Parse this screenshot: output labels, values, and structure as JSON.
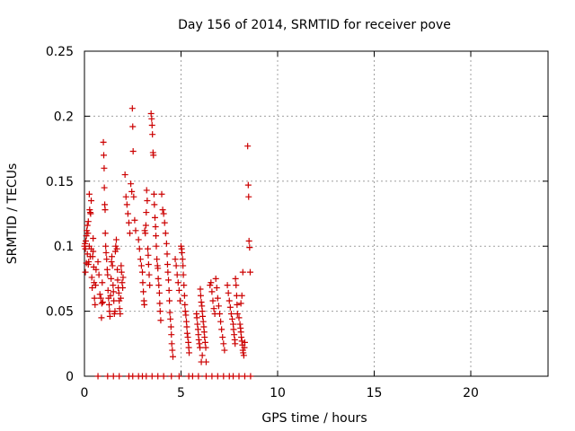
{
  "chart_data": {
    "type": "scatter",
    "title": "Day 156 of 2014, SRMTID for receiver pove",
    "xlabel": "GPS time / hours",
    "ylabel": "SRMTID / TECUs",
    "xlim": [
      0,
      24
    ],
    "ylim": [
      0,
      0.25
    ],
    "xticks": [
      0,
      5,
      10,
      15,
      20
    ],
    "xtick_labels": [
      "0",
      "5",
      "10",
      "15",
      "20"
    ],
    "yticks": [
      0,
      0.05,
      0.1,
      0.15,
      0.2,
      0.25
    ],
    "ytick_labels": [
      "0",
      "0.05",
      "0.1",
      "0.15",
      "0.2",
      "0.25"
    ],
    "grid": true,
    "marker": "plus",
    "color": "#cc0000",
    "series": [
      {
        "points": [
          [
            0.0,
            0.1
          ],
          [
            0.03,
            0.102
          ],
          [
            0.05,
            0.098
          ],
          [
            0.07,
            0.104
          ],
          [
            0.1,
            0.108
          ],
          [
            0.12,
            0.112
          ],
          [
            0.15,
            0.116
          ],
          [
            0.18,
            0.11
          ],
          [
            0.2,
            0.119
          ],
          [
            0.22,
            0.088
          ],
          [
            0.25,
            0.14
          ],
          [
            0.27,
            0.128
          ],
          [
            0.3,
            0.126
          ],
          [
            0.32,
            0.125
          ],
          [
            0.35,
            0.135
          ],
          [
            0.38,
            0.076
          ],
          [
            0.4,
            0.068
          ],
          [
            0.42,
            0.092
          ],
          [
            0.45,
            0.096
          ],
          [
            0.48,
            0.084
          ],
          [
            0.5,
            0.072
          ],
          [
            0.52,
            0.06
          ],
          [
            0.55,
            0.055
          ],
          [
            0.58,
            0.07
          ],
          [
            0.6,
            0.082
          ],
          [
            0.05,
            0.08
          ],
          [
            0.1,
            0.087
          ],
          [
            0.15,
            0.094
          ],
          [
            0.2,
            0.086
          ],
          [
            0.25,
            0.1
          ],
          [
            0.3,
            0.092
          ],
          [
            0.35,
            0.098
          ],
          [
            0.45,
            0.106
          ],
          [
            0.7,
            0.088
          ],
          [
            0.75,
            0.078
          ],
          [
            0.8,
            0.063
          ],
          [
            0.85,
            0.06
          ],
          [
            0.88,
            0.045
          ],
          [
            0.9,
            0.056
          ],
          [
            0.92,
            0.072
          ],
          [
            0.95,
            0.057
          ],
          [
            0.98,
            0.18
          ],
          [
            1.0,
            0.17
          ],
          [
            1.02,
            0.16
          ],
          [
            1.03,
            0.145
          ],
          [
            1.05,
            0.132
          ],
          [
            1.07,
            0.128
          ],
          [
            1.08,
            0.11
          ],
          [
            1.1,
            0.1
          ],
          [
            1.12,
            0.095
          ],
          [
            1.15,
            0.09
          ],
          [
            1.18,
            0.082
          ],
          [
            1.2,
            0.078
          ],
          [
            1.22,
            0.066
          ],
          [
            1.25,
            0.06
          ],
          [
            1.28,
            0.055
          ],
          [
            1.3,
            0.05
          ],
          [
            1.32,
            0.046
          ],
          [
            1.35,
            0.062
          ],
          [
            1.38,
            0.075
          ],
          [
            1.4,
            0.088
          ],
          [
            1.42,
            0.092
          ],
          [
            1.45,
            0.085
          ],
          [
            1.48,
            0.07
          ],
          [
            1.5,
            0.065
          ],
          [
            1.52,
            0.058
          ],
          [
            1.55,
            0.048
          ],
          [
            1.58,
            0.05
          ],
          [
            1.6,
            0.096
          ],
          [
            1.62,
            0.1
          ],
          [
            1.65,
            0.105
          ],
          [
            1.68,
            0.098
          ],
          [
            1.7,
            0.082
          ],
          [
            1.72,
            0.074
          ],
          [
            1.75,
            0.068
          ],
          [
            1.78,
            0.064
          ],
          [
            1.8,
            0.058
          ],
          [
            1.82,
            0.052
          ],
          [
            1.85,
            0.048
          ],
          [
            1.88,
            0.06
          ],
          [
            1.9,
            0.085
          ],
          [
            1.92,
            0.08
          ],
          [
            1.95,
            0.072
          ],
          [
            1.98,
            0.068
          ],
          [
            2.0,
            0.076
          ],
          [
            2.1,
            0.155
          ],
          [
            2.15,
            0.138
          ],
          [
            2.2,
            0.132
          ],
          [
            2.25,
            0.125
          ],
          [
            2.3,
            0.118
          ],
          [
            2.35,
            0.11
          ],
          [
            2.4,
            0.148
          ],
          [
            2.45,
            0.142
          ],
          [
            2.48,
            0.206
          ],
          [
            2.5,
            0.192
          ],
          [
            2.52,
            0.173
          ],
          [
            2.55,
            0.138
          ],
          [
            2.6,
            0.12
          ],
          [
            2.65,
            0.112
          ],
          [
            2.8,
            0.105
          ],
          [
            2.85,
            0.098
          ],
          [
            2.9,
            0.09
          ],
          [
            2.95,
            0.085
          ],
          [
            3.0,
            0.08
          ],
          [
            3.02,
            0.072
          ],
          [
            3.05,
            0.065
          ],
          [
            3.08,
            0.058
          ],
          [
            3.1,
            0.055
          ],
          [
            3.12,
            0.112
          ],
          [
            3.15,
            0.11
          ],
          [
            3.18,
            0.116
          ],
          [
            3.2,
            0.126
          ],
          [
            3.22,
            0.143
          ],
          [
            3.25,
            0.135
          ],
          [
            3.28,
            0.098
          ],
          [
            3.3,
            0.093
          ],
          [
            3.32,
            0.086
          ],
          [
            3.35,
            0.078
          ],
          [
            3.38,
            0.07
          ],
          [
            3.45,
            0.202
          ],
          [
            3.48,
            0.198
          ],
          [
            3.5,
            0.193
          ],
          [
            3.52,
            0.186
          ],
          [
            3.55,
            0.172
          ],
          [
            3.57,
            0.17
          ],
          [
            3.6,
            0.14
          ],
          [
            3.62,
            0.132
          ],
          [
            3.65,
            0.122
          ],
          [
            3.68,
            0.115
          ],
          [
            3.7,
            0.108
          ],
          [
            3.72,
            0.1
          ],
          [
            3.75,
            0.09
          ],
          [
            3.78,
            0.085
          ],
          [
            3.8,
            0.083
          ],
          [
            3.82,
            0.075
          ],
          [
            3.85,
            0.07
          ],
          [
            3.88,
            0.064
          ],
          [
            3.9,
            0.056
          ],
          [
            3.92,
            0.05
          ],
          [
            3.95,
            0.043
          ],
          [
            4.0,
            0.14
          ],
          [
            4.05,
            0.128
          ],
          [
            4.1,
            0.125
          ],
          [
            4.15,
            0.118
          ],
          [
            4.2,
            0.11
          ],
          [
            4.25,
            0.102
          ],
          [
            4.28,
            0.094
          ],
          [
            4.3,
            0.086
          ],
          [
            4.32,
            0.08
          ],
          [
            4.35,
            0.074
          ],
          [
            4.38,
            0.066
          ],
          [
            4.4,
            0.058
          ],
          [
            4.42,
            0.049
          ],
          [
            4.45,
            0.044
          ],
          [
            4.48,
            0.038
          ],
          [
            4.5,
            0.032
          ],
          [
            4.52,
            0.025
          ],
          [
            4.55,
            0.02
          ],
          [
            4.58,
            0.015
          ],
          [
            4.7,
            0.09
          ],
          [
            4.75,
            0.085
          ],
          [
            4.8,
            0.078
          ],
          [
            4.85,
            0.072
          ],
          [
            4.9,
            0.066
          ],
          [
            4.95,
            0.058
          ],
          [
            5.0,
            0.1
          ],
          [
            5.03,
            0.098
          ],
          [
            5.05,
            0.095
          ],
          [
            5.08,
            0.09
          ],
          [
            5.1,
            0.085
          ],
          [
            5.12,
            0.078
          ],
          [
            5.15,
            0.07
          ],
          [
            5.18,
            0.062
          ],
          [
            5.2,
            0.055
          ],
          [
            5.22,
            0.05
          ],
          [
            5.25,
            0.047
          ],
          [
            5.28,
            0.042
          ],
          [
            5.3,
            0.038
          ],
          [
            5.32,
            0.033
          ],
          [
            5.35,
            0.03
          ],
          [
            5.38,
            0.026
          ],
          [
            5.4,
            0.022
          ],
          [
            5.42,
            0.018
          ],
          [
            5.8,
            0.048
          ],
          [
            5.82,
            0.045
          ],
          [
            5.85,
            0.04
          ],
          [
            5.88,
            0.036
          ],
          [
            5.9,
            0.032
          ],
          [
            5.92,
            0.028
          ],
          [
            5.95,
            0.025
          ],
          [
            5.98,
            0.022
          ],
          [
            6.0,
            0.067
          ],
          [
            6.02,
            0.062
          ],
          [
            6.05,
            0.057
          ],
          [
            6.08,
            0.054
          ],
          [
            6.1,
            0.05
          ],
          [
            6.12,
            0.046
          ],
          [
            6.15,
            0.042
          ],
          [
            6.18,
            0.038
          ],
          [
            6.2,
            0.034
          ],
          [
            6.22,
            0.03
          ],
          [
            6.25,
            0.026
          ],
          [
            6.28,
            0.022
          ],
          [
            6.3,
            0.011
          ],
          [
            6.05,
            0.011
          ],
          [
            6.1,
            0.016
          ],
          [
            6.5,
            0.07
          ],
          [
            6.55,
            0.072
          ],
          [
            6.6,
            0.065
          ],
          [
            6.65,
            0.058
          ],
          [
            6.7,
            0.052
          ],
          [
            6.75,
            0.048
          ],
          [
            6.8,
            0.075
          ],
          [
            6.85,
            0.068
          ],
          [
            6.9,
            0.06
          ],
          [
            6.95,
            0.054
          ],
          [
            7.0,
            0.048
          ],
          [
            7.05,
            0.042
          ],
          [
            7.1,
            0.036
          ],
          [
            7.15,
            0.03
          ],
          [
            7.2,
            0.025
          ],
          [
            7.25,
            0.02
          ],
          [
            7.4,
            0.07
          ],
          [
            7.45,
            0.064
          ],
          [
            7.5,
            0.058
          ],
          [
            7.55,
            0.053
          ],
          [
            7.6,
            0.048
          ],
          [
            7.65,
            0.044
          ],
          [
            7.7,
            0.04
          ],
          [
            7.72,
            0.036
          ],
          [
            7.75,
            0.032
          ],
          [
            7.78,
            0.028
          ],
          [
            7.8,
            0.025
          ],
          [
            7.82,
            0.075
          ],
          [
            7.85,
            0.07
          ],
          [
            7.88,
            0.062
          ],
          [
            7.9,
            0.055
          ],
          [
            7.92,
            0.048
          ],
          [
            8.0,
            0.045
          ],
          [
            8.05,
            0.04
          ],
          [
            8.08,
            0.037
          ],
          [
            8.1,
            0.034
          ],
          [
            8.12,
            0.03
          ],
          [
            8.15,
            0.027
          ],
          [
            8.18,
            0.024
          ],
          [
            8.2,
            0.02
          ],
          [
            8.22,
            0.018
          ],
          [
            8.25,
            0.016
          ],
          [
            8.28,
            0.022
          ],
          [
            8.3,
            0.026
          ],
          [
            8.15,
            0.062
          ],
          [
            8.2,
            0.08
          ],
          [
            8.1,
            0.056
          ],
          [
            8.45,
            0.177
          ],
          [
            8.48,
            0.147
          ],
          [
            8.5,
            0.138
          ],
          [
            8.52,
            0.104
          ],
          [
            8.55,
            0.099
          ],
          [
            8.58,
            0.08
          ],
          [
            0.7,
            0.0
          ],
          [
            1.2,
            0.0
          ],
          [
            1.5,
            0.0
          ],
          [
            1.8,
            0.0
          ],
          [
            2.3,
            0.0
          ],
          [
            2.5,
            0.0
          ],
          [
            2.8,
            0.0
          ],
          [
            3.0,
            0.0
          ],
          [
            3.2,
            0.0
          ],
          [
            3.5,
            0.0
          ],
          [
            3.8,
            0.0
          ],
          [
            4.1,
            0.0
          ],
          [
            4.5,
            0.0
          ],
          [
            4.9,
            0.0
          ],
          [
            5.4,
            0.0
          ],
          [
            5.6,
            0.0
          ],
          [
            5.9,
            0.0
          ],
          [
            6.3,
            0.0
          ],
          [
            6.6,
            0.0
          ],
          [
            6.9,
            0.0
          ],
          [
            7.2,
            0.0
          ],
          [
            7.5,
            0.0
          ],
          [
            7.7,
            0.0
          ],
          [
            8.0,
            0.0
          ],
          [
            8.3,
            0.0
          ],
          [
            8.6,
            0.0
          ]
        ]
      }
    ]
  }
}
